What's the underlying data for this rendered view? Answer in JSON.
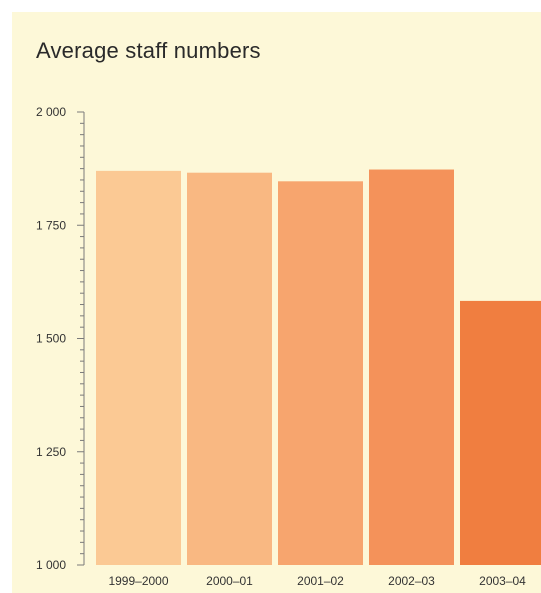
{
  "chart_data": {
    "type": "bar",
    "title": "Average staff numbers",
    "xlabel": "",
    "ylabel": "",
    "categories": [
      "1999–2000",
      "2000–01",
      "2001–02",
      "2002–03",
      "2003–04"
    ],
    "values": [
      1870,
      1866,
      1847,
      1873,
      1583
    ],
    "ylim": [
      1000,
      2000
    ],
    "yticks": [
      1000,
      1250,
      1500,
      1750,
      2000
    ],
    "ytick_labels": [
      "1 000",
      "1 250",
      "1 500",
      "1 750",
      "2 000"
    ],
    "grid": false,
    "colors": [
      "#fbc994",
      "#f9b882",
      "#f7a56e",
      "#f4925a",
      "#f07e40"
    ]
  }
}
